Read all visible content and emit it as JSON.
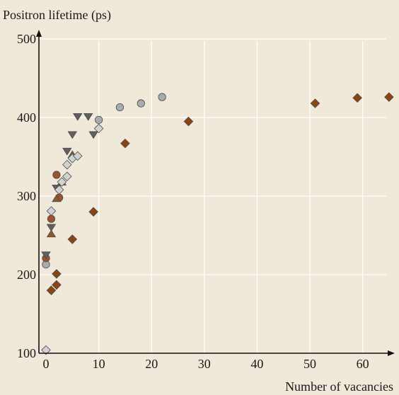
{
  "chart_data": {
    "type": "scatter",
    "title": "",
    "ylabel": "Positron lifetime (ps)",
    "xlabel": "Number of vacancies",
    "xlim": [
      -1,
      65
    ],
    "ylim": [
      100,
      500
    ],
    "x_ticks": [
      0,
      10,
      20,
      30,
      40,
      50,
      60
    ],
    "y_ticks": [
      100,
      200,
      300,
      400,
      500
    ],
    "grid": true,
    "series": [
      {
        "marker": "diamond",
        "color": "#8b4513",
        "points": [
          [
            1,
            180
          ],
          [
            2,
            187
          ],
          [
            2,
            201
          ],
          [
            5,
            245
          ],
          [
            9,
            280
          ],
          [
            15,
            367
          ],
          [
            27,
            395
          ],
          [
            51,
            418
          ],
          [
            59,
            425
          ],
          [
            65,
            426
          ]
        ]
      },
      {
        "marker": "circle",
        "color": "#a9acaf",
        "points": [
          [
            0,
            213
          ],
          [
            14,
            413
          ],
          [
            18,
            418
          ],
          [
            22,
            426
          ],
          [
            10,
            397
          ]
        ]
      },
      {
        "marker": "circle",
        "color": "#a0522d",
        "points": [
          [
            0,
            221
          ],
          [
            1,
            271
          ],
          [
            2,
            327
          ],
          [
            2.5,
            298
          ]
        ]
      },
      {
        "marker": "triangle-down",
        "color": "#606060",
        "points": [
          [
            0,
            225
          ],
          [
            1,
            260
          ],
          [
            2,
            310
          ],
          [
            4,
            357
          ],
          [
            5,
            378
          ],
          [
            6,
            401
          ],
          [
            8,
            401
          ],
          [
            9,
            378
          ]
        ]
      },
      {
        "marker": "triangle-up",
        "color": "#8b5a2b",
        "points": [
          [
            1,
            252
          ],
          [
            2,
            297
          ],
          [
            3,
            318
          ],
          [
            5,
            353
          ]
        ]
      },
      {
        "marker": "diamond",
        "color": "#d0d2d4",
        "points": [
          [
            0,
            104
          ],
          [
            1,
            281
          ],
          [
            2.5,
            308
          ],
          [
            3,
            318
          ],
          [
            4,
            325
          ],
          [
            4,
            340
          ],
          [
            5,
            348
          ],
          [
            6,
            351
          ],
          [
            10,
            386
          ]
        ]
      }
    ]
  }
}
